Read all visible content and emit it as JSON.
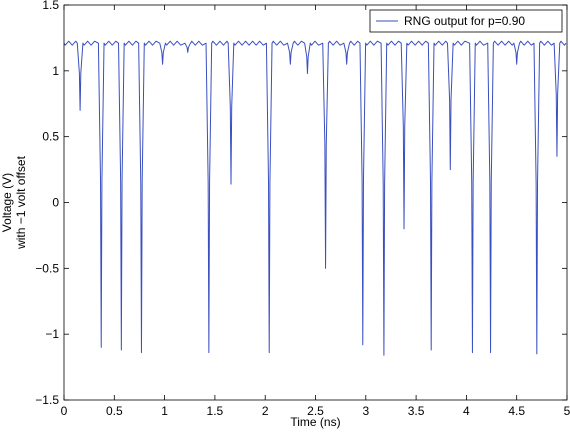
{
  "colors": {
    "series_line": "#3a4fbf",
    "axis": "#000000",
    "background": "#ffffff"
  },
  "chart_data": {
    "type": "line",
    "title": "",
    "xlabel": "Time (ns)",
    "ylabel_lines": [
      "Voltage (V)",
      "with −1 volt offset"
    ],
    "xlim": [
      0,
      5
    ],
    "ylim": [
      -1.5,
      1.5
    ],
    "x_ticks": [
      0,
      0.5,
      1,
      1.5,
      2,
      2.5,
      3,
      3.5,
      4,
      4.5,
      5
    ],
    "x_tick_labels": [
      "0",
      "0.5",
      "1",
      "1.5",
      "2",
      "2.5",
      "3",
      "3.5",
      "4",
      "4.5",
      "5"
    ],
    "y_ticks": [
      -1.5,
      -1,
      -0.5,
      0,
      0.5,
      1,
      1.5
    ],
    "y_tick_labels": [
      "−1.5",
      "−1",
      "−0.5",
      "0",
      "0.5",
      "1",
      "1.5"
    ],
    "grid": false,
    "legend_position": "top-right",
    "series": [
      {
        "name": "RNG output for p=0.90",
        "baseline": 1.21,
        "dips": [
          {
            "x": 0.16,
            "min": 0.7
          },
          {
            "x": 0.37,
            "min": -1.1
          },
          {
            "x": 0.57,
            "min": -1.12
          },
          {
            "x": 0.77,
            "min": -1.14
          },
          {
            "x": 0.98,
            "min": 1.05
          },
          {
            "x": 1.23,
            "min": 1.14
          },
          {
            "x": 1.44,
            "min": -1.14
          },
          {
            "x": 1.66,
            "min": 0.14
          },
          {
            "x": 2.04,
            "min": -1.14
          },
          {
            "x": 2.25,
            "min": 1.05
          },
          {
            "x": 2.42,
            "min": 0.98
          },
          {
            "x": 2.6,
            "min": -0.5
          },
          {
            "x": 2.81,
            "min": 1.05
          },
          {
            "x": 2.97,
            "min": -1.08
          },
          {
            "x": 3.18,
            "min": -1.16
          },
          {
            "x": 3.38,
            "min": -0.2
          },
          {
            "x": 3.65,
            "min": -1.12
          },
          {
            "x": 3.84,
            "min": 0.25
          },
          {
            "x": 4.06,
            "min": -1.14
          },
          {
            "x": 4.24,
            "min": -1.14
          },
          {
            "x": 4.5,
            "min": 1.05
          },
          {
            "x": 4.7,
            "min": -1.15
          },
          {
            "x": 4.9,
            "min": 0.35
          }
        ]
      }
    ]
  }
}
